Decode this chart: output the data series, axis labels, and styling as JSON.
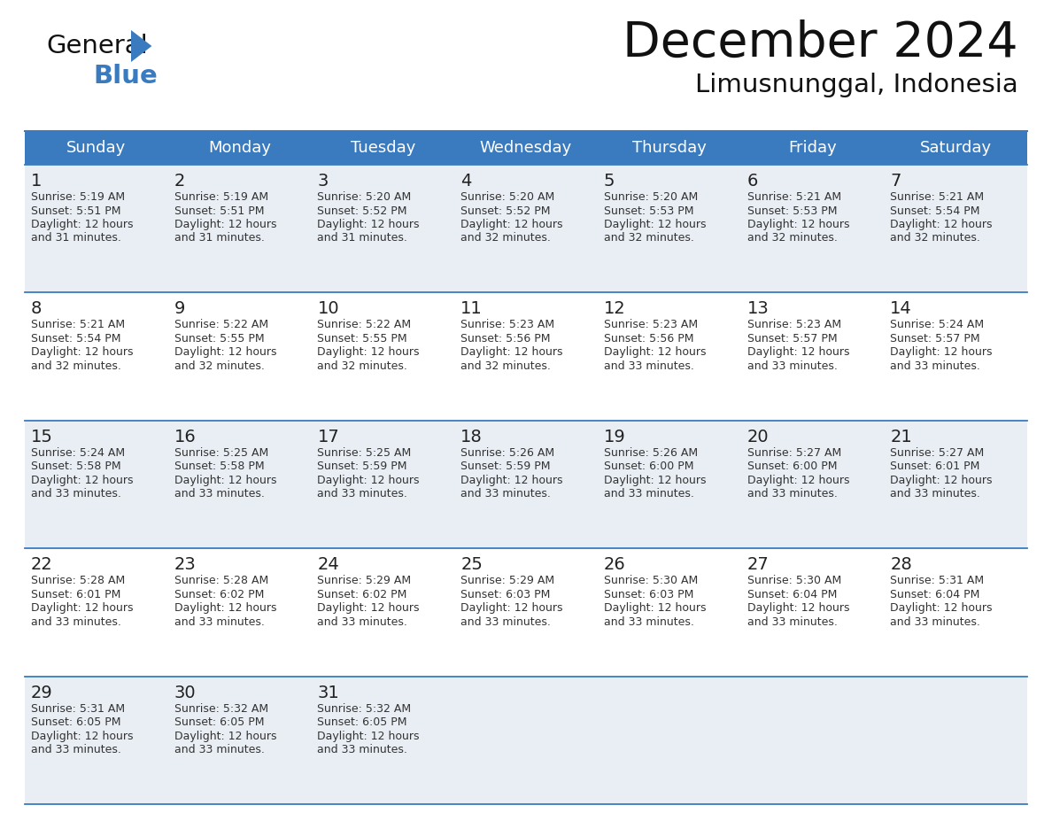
{
  "title": "December 2024",
  "subtitle": "Limusnunggal, Indonesia",
  "header_bg": "#3a7bbf",
  "header_text": "#ffffff",
  "row_bg_odd": "#e8eef4",
  "row_bg_even": "#ffffff",
  "day_number_color": "#222222",
  "cell_text_color": "#333333",
  "border_color": "#3a7bbf",
  "days_of_week": [
    "Sunday",
    "Monday",
    "Tuesday",
    "Wednesday",
    "Thursday",
    "Friday",
    "Saturday"
  ],
  "calendar": [
    [
      {
        "day": 1,
        "sunrise": "5:19 AM",
        "sunset": "5:51 PM",
        "daylight": "12 hours and 31 minutes"
      },
      {
        "day": 2,
        "sunrise": "5:19 AM",
        "sunset": "5:51 PM",
        "daylight": "12 hours and 31 minutes"
      },
      {
        "day": 3,
        "sunrise": "5:20 AM",
        "sunset": "5:52 PM",
        "daylight": "12 hours and 31 minutes"
      },
      {
        "day": 4,
        "sunrise": "5:20 AM",
        "sunset": "5:52 PM",
        "daylight": "12 hours and 32 minutes"
      },
      {
        "day": 5,
        "sunrise": "5:20 AM",
        "sunset": "5:53 PM",
        "daylight": "12 hours and 32 minutes"
      },
      {
        "day": 6,
        "sunrise": "5:21 AM",
        "sunset": "5:53 PM",
        "daylight": "12 hours and 32 minutes"
      },
      {
        "day": 7,
        "sunrise": "5:21 AM",
        "sunset": "5:54 PM",
        "daylight": "12 hours and 32 minutes"
      }
    ],
    [
      {
        "day": 8,
        "sunrise": "5:21 AM",
        "sunset": "5:54 PM",
        "daylight": "12 hours and 32 minutes"
      },
      {
        "day": 9,
        "sunrise": "5:22 AM",
        "sunset": "5:55 PM",
        "daylight": "12 hours and 32 minutes"
      },
      {
        "day": 10,
        "sunrise": "5:22 AM",
        "sunset": "5:55 PM",
        "daylight": "12 hours and 32 minutes"
      },
      {
        "day": 11,
        "sunrise": "5:23 AM",
        "sunset": "5:56 PM",
        "daylight": "12 hours and 32 minutes"
      },
      {
        "day": 12,
        "sunrise": "5:23 AM",
        "sunset": "5:56 PM",
        "daylight": "12 hours and 33 minutes"
      },
      {
        "day": 13,
        "sunrise": "5:23 AM",
        "sunset": "5:57 PM",
        "daylight": "12 hours and 33 minutes"
      },
      {
        "day": 14,
        "sunrise": "5:24 AM",
        "sunset": "5:57 PM",
        "daylight": "12 hours and 33 minutes"
      }
    ],
    [
      {
        "day": 15,
        "sunrise": "5:24 AM",
        "sunset": "5:58 PM",
        "daylight": "12 hours and 33 minutes"
      },
      {
        "day": 16,
        "sunrise": "5:25 AM",
        "sunset": "5:58 PM",
        "daylight": "12 hours and 33 minutes"
      },
      {
        "day": 17,
        "sunrise": "5:25 AM",
        "sunset": "5:59 PM",
        "daylight": "12 hours and 33 minutes"
      },
      {
        "day": 18,
        "sunrise": "5:26 AM",
        "sunset": "5:59 PM",
        "daylight": "12 hours and 33 minutes"
      },
      {
        "day": 19,
        "sunrise": "5:26 AM",
        "sunset": "6:00 PM",
        "daylight": "12 hours and 33 minutes"
      },
      {
        "day": 20,
        "sunrise": "5:27 AM",
        "sunset": "6:00 PM",
        "daylight": "12 hours and 33 minutes"
      },
      {
        "day": 21,
        "sunrise": "5:27 AM",
        "sunset": "6:01 PM",
        "daylight": "12 hours and 33 minutes"
      }
    ],
    [
      {
        "day": 22,
        "sunrise": "5:28 AM",
        "sunset": "6:01 PM",
        "daylight": "12 hours and 33 minutes"
      },
      {
        "day": 23,
        "sunrise": "5:28 AM",
        "sunset": "6:02 PM",
        "daylight": "12 hours and 33 minutes"
      },
      {
        "day": 24,
        "sunrise": "5:29 AM",
        "sunset": "6:02 PM",
        "daylight": "12 hours and 33 minutes"
      },
      {
        "day": 25,
        "sunrise": "5:29 AM",
        "sunset": "6:03 PM",
        "daylight": "12 hours and 33 minutes"
      },
      {
        "day": 26,
        "sunrise": "5:30 AM",
        "sunset": "6:03 PM",
        "daylight": "12 hours and 33 minutes"
      },
      {
        "day": 27,
        "sunrise": "5:30 AM",
        "sunset": "6:04 PM",
        "daylight": "12 hours and 33 minutes"
      },
      {
        "day": 28,
        "sunrise": "5:31 AM",
        "sunset": "6:04 PM",
        "daylight": "12 hours and 33 minutes"
      }
    ],
    [
      {
        "day": 29,
        "sunrise": "5:31 AM",
        "sunset": "6:05 PM",
        "daylight": "12 hours and 33 minutes"
      },
      {
        "day": 30,
        "sunrise": "5:32 AM",
        "sunset": "6:05 PM",
        "daylight": "12 hours and 33 minutes"
      },
      {
        "day": 31,
        "sunrise": "5:32 AM",
        "sunset": "6:05 PM",
        "daylight": "12 hours and 33 minutes"
      },
      null,
      null,
      null,
      null
    ]
  ]
}
